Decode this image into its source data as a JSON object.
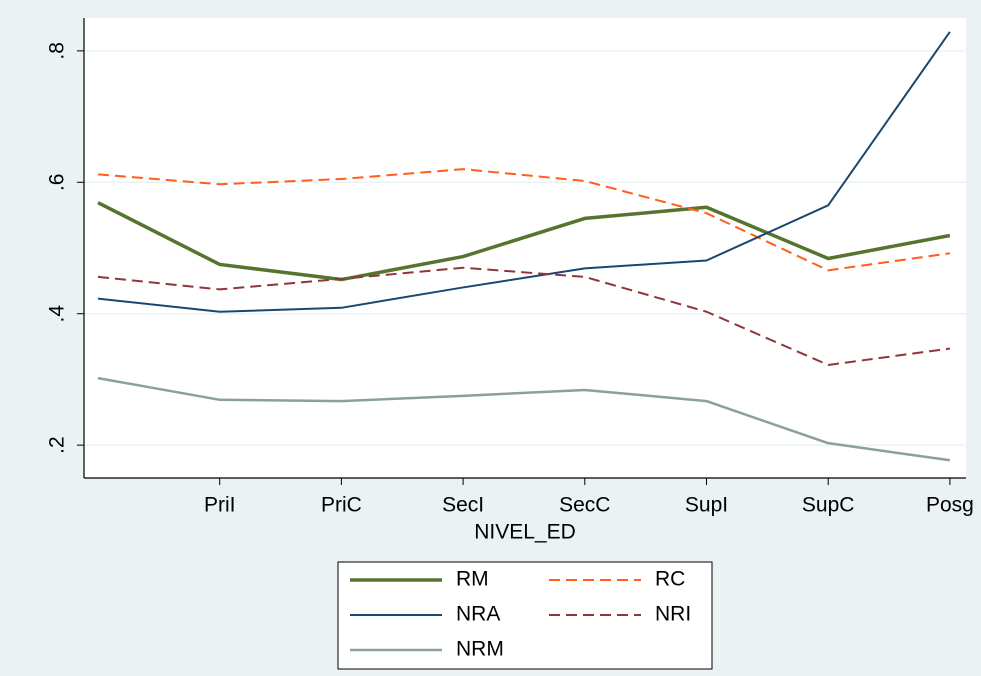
{
  "chart_data": {
    "type": "line",
    "x_label": "NIVEL_ED",
    "categories": [
      null,
      "PriI",
      "PriC",
      "SecI",
      "SecC",
      "SupI",
      "SupC",
      "Posg"
    ],
    "series": [
      {
        "name": "RM",
        "color": "#55752f",
        "width": 3.5,
        "dashed": false,
        "values": [
          0.569,
          0.475,
          0.452,
          0.487,
          0.545,
          0.562,
          0.484,
          0.519
        ]
      },
      {
        "name": "RC",
        "color": "#ff5f1a",
        "width": 2,
        "dashed": true,
        "values": [
          0.612,
          0.597,
          0.605,
          0.62,
          0.602,
          0.553,
          0.466,
          0.492
        ]
      },
      {
        "name": "NRA",
        "color": "#1a476f",
        "width": 2,
        "dashed": false,
        "values": [
          0.423,
          0.403,
          0.409,
          0.44,
          0.469,
          0.481,
          0.565,
          0.829
        ]
      },
      {
        "name": "NRI",
        "color": "#90353b",
        "width": 2,
        "dashed": true,
        "values": [
          0.456,
          0.437,
          0.453,
          0.47,
          0.456,
          0.403,
          0.322,
          0.347
        ]
      },
      {
        "name": "NRM",
        "color": "#8aa294",
        "width": 2.5,
        "dashed": false,
        "values": [
          0.302,
          0.269,
          0.267,
          0.275,
          0.284,
          0.267,
          0.203,
          0.177
        ]
      }
    ],
    "ylim": [
      0.15,
      0.85
    ],
    "yticks": [
      {
        "value": 0.2,
        "label": ".2"
      },
      {
        "value": 0.4,
        "label": ".4"
      },
      {
        "value": 0.6,
        "label": ".6"
      },
      {
        "value": 0.8,
        "label": ".8"
      }
    ],
    "grid": true,
    "legend_columns": 2
  }
}
